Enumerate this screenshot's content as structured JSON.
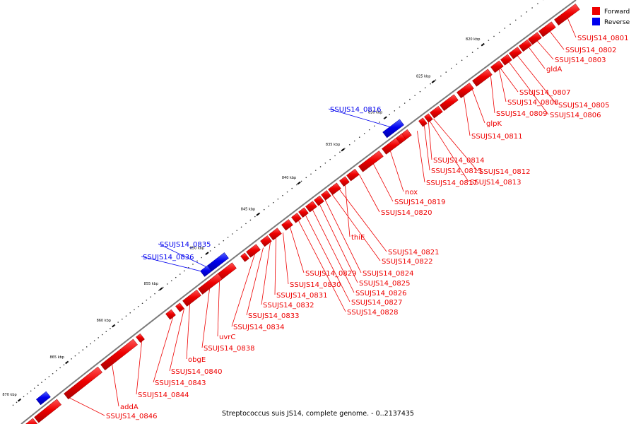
{
  "legend": {
    "forward_label": "Forward",
    "reverse_label": "Reverse",
    "forward_color": "#ee0000",
    "reverse_color": "#0000ee"
  },
  "caption": "Streptococcus suis JS14, complete genome. - 0..2137435",
  "ticks": [
    "820 kbp",
    "825 kbp",
    "830 kbp",
    "835 kbp",
    "840 kbp",
    "845 kbp",
    "850 kbp",
    "855 kbp",
    "860 kbp",
    "865 kbp",
    "870 kbp"
  ],
  "genes": [
    {
      "label": "SSUJS14_0801",
      "strand": "forward"
    },
    {
      "label": "SSUJS14_0802",
      "strand": "forward"
    },
    {
      "label": "SSUJS14_0803",
      "strand": "forward"
    },
    {
      "label": "gldA",
      "strand": "forward"
    },
    {
      "label": "SSUJS14_0805",
      "strand": "forward"
    },
    {
      "label": "SSUJS14_0806",
      "strand": "forward"
    },
    {
      "label": "SSUJS14_0807",
      "strand": "forward"
    },
    {
      "label": "SSUJS14_0808",
      "strand": "forward"
    },
    {
      "label": "SSUJS14_0809",
      "strand": "forward"
    },
    {
      "label": "glpK",
      "strand": "forward"
    },
    {
      "label": "SSUJS14_0811",
      "strand": "forward"
    },
    {
      "label": "SSUJS14_0812",
      "strand": "forward"
    },
    {
      "label": "SSUJS14_0813",
      "strand": "forward"
    },
    {
      "label": "SSUJS14_0814",
      "strand": "forward"
    },
    {
      "label": "SSUJS14_0815",
      "strand": "forward"
    },
    {
      "label": "SSUJS14_0816",
      "strand": "reverse"
    },
    {
      "label": "SSUJS14_0817",
      "strand": "forward"
    },
    {
      "label": "nox",
      "strand": "forward"
    },
    {
      "label": "SSUJS14_0819",
      "strand": "forward"
    },
    {
      "label": "SSUJS14_0820",
      "strand": "forward"
    },
    {
      "label": "thiE",
      "strand": "forward"
    },
    {
      "label": "SSUJS14_0821",
      "strand": "forward"
    },
    {
      "label": "SSUJS14_0822",
      "strand": "forward"
    },
    {
      "label": "SSUJS14_0824",
      "strand": "forward"
    },
    {
      "label": "SSUJS14_0825",
      "strand": "forward"
    },
    {
      "label": "SSUJS14_0826",
      "strand": "forward"
    },
    {
      "label": "SSUJS14_0827",
      "strand": "forward"
    },
    {
      "label": "SSUJS14_0828",
      "strand": "forward"
    },
    {
      "label": "SSUJS14_0829",
      "strand": "forward"
    },
    {
      "label": "SSUJS14_0830",
      "strand": "forward"
    },
    {
      "label": "SSUJS14_0831",
      "strand": "forward"
    },
    {
      "label": "SSUJS14_0832",
      "strand": "forward"
    },
    {
      "label": "SSUJS14_0833",
      "strand": "forward"
    },
    {
      "label": "SSUJS14_0834",
      "strand": "forward"
    },
    {
      "label": "SSUJS14_0835",
      "strand": "reverse"
    },
    {
      "label": "SSUJS14_0836",
      "strand": "reverse"
    },
    {
      "label": "uvrC",
      "strand": "forward"
    },
    {
      "label": "SSUJS14_0838",
      "strand": "forward"
    },
    {
      "label": "obgE",
      "strand": "forward"
    },
    {
      "label": "SSUJS14_0840",
      "strand": "forward"
    },
    {
      "label": "SSUJS14_0843",
      "strand": "forward"
    },
    {
      "label": "SSUJS14_0844",
      "strand": "forward"
    },
    {
      "label": "addA",
      "strand": "forward"
    },
    {
      "label": "SSUJS14_0846",
      "strand": "forward"
    }
  ]
}
